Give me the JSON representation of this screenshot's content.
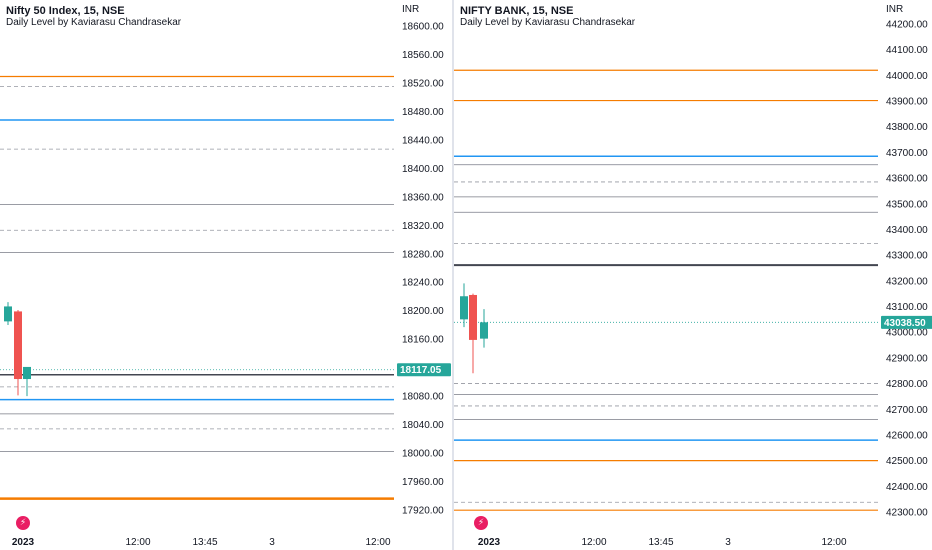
{
  "colors": {
    "up": "#26a69a",
    "down": "#ef5350",
    "orange": "#f57c00",
    "blue": "#2196f3",
    "gray": "#787b86",
    "dark": "#434651",
    "dashed": "#9598a1",
    "current": "#26a69a"
  },
  "charts": [
    {
      "title": "Nifty 50 Index, 15, NSE",
      "subtitle": "Daily Level by Kaviarasu Chandrasekar",
      "currency": "INR",
      "current_price": 18117.05,
      "current_label": "18117.05"
    },
    {
      "title": "NIFTY BANK, 15, NSE",
      "subtitle": "Daily Level by Kaviarasu Chandrasekar",
      "currency": "INR",
      "current_price": 43038.5,
      "current_label": "43038.50"
    }
  ],
  "chart_data": [
    {
      "type": "candlestick",
      "title": "Nifty 50 Index, 15, NSE",
      "subtitle": "Daily Level by Kaviarasu Chandrasekar",
      "currency": "INR",
      "ylim": [
        17905,
        18610
      ],
      "y_ticks": [
        "18600.00",
        "18560.00",
        "18520.00",
        "18480.00",
        "18440.00",
        "18400.00",
        "18360.00",
        "18320.00",
        "18280.00",
        "18240.00",
        "18200.00",
        "18160.00",
        "18120.00",
        "18080.00",
        "18040.00",
        "18000.00",
        "17960.00",
        "17920.00"
      ],
      "x_ticks": [
        "2023",
        "12:00",
        "13:45",
        "3",
        "12:00"
      ],
      "candles": [
        {
          "open": 18185,
          "high": 18212,
          "low": 18180,
          "close": 18206
        },
        {
          "open": 18199,
          "high": 18201,
          "low": 18081,
          "close": 18104
        },
        {
          "open": 18104,
          "high": 18119,
          "low": 18080,
          "close": 18121
        }
      ],
      "levels": [
        {
          "price": 18529,
          "style": "orange"
        },
        {
          "price": 18515,
          "style": "dashed"
        },
        {
          "price": 18468,
          "style": "blue"
        },
        {
          "price": 18427,
          "style": "dashed"
        },
        {
          "price": 18349,
          "style": "gray"
        },
        {
          "price": 18313,
          "style": "dashed"
        },
        {
          "price": 18282,
          "style": "gray"
        },
        {
          "price": 18110,
          "style": "dark"
        },
        {
          "price": 18093,
          "style": "dashed"
        },
        {
          "price": 18075,
          "style": "blue"
        },
        {
          "price": 18055,
          "style": "gray"
        },
        {
          "price": 18034,
          "style": "dashed"
        },
        {
          "price": 18002,
          "style": "gray"
        },
        {
          "price": 17936,
          "style": "orange-thick"
        }
      ],
      "current_price": 18117.05
    },
    {
      "type": "candlestick",
      "title": "NIFTY BANK, 15, NSE",
      "subtitle": "Daily Level by Kaviarasu Chandrasekar",
      "currency": "INR",
      "ylim": [
        42260,
        44225
      ],
      "y_ticks": [
        "44200.00",
        "44100.00",
        "44000.00",
        "43900.00",
        "43800.00",
        "43700.00",
        "43600.00",
        "43500.00",
        "43400.00",
        "43300.00",
        "43200.00",
        "43100.00",
        "43000.00",
        "42900.00",
        "42800.00",
        "42700.00",
        "42600.00",
        "42500.00",
        "42400.00",
        "42300.00"
      ],
      "x_ticks": [
        "2023",
        "12:00",
        "13:45",
        "3",
        "12:00"
      ],
      "candles": [
        {
          "open": 43050,
          "high": 43190,
          "low": 43020,
          "close": 43140
        },
        {
          "open": 43145,
          "high": 43150,
          "low": 42840,
          "close": 42970
        },
        {
          "open": 42975,
          "high": 43090,
          "low": 42940,
          "close": 43038.5
        }
      ],
      "levels": [
        {
          "price": 44020,
          "style": "orange"
        },
        {
          "price": 43902,
          "style": "orange"
        },
        {
          "price": 43685,
          "style": "blue"
        },
        {
          "price": 43652,
          "style": "gray"
        },
        {
          "price": 43585,
          "style": "dashed"
        },
        {
          "price": 43527,
          "style": "gray"
        },
        {
          "price": 43467,
          "style": "gray"
        },
        {
          "price": 43345,
          "style": "dashed"
        },
        {
          "price": 43261,
          "style": "dark-thick"
        },
        {
          "price": 42800,
          "style": "dashed"
        },
        {
          "price": 42757,
          "style": "gray"
        },
        {
          "price": 42713,
          "style": "dashed"
        },
        {
          "price": 42660,
          "style": "gray"
        },
        {
          "price": 42580,
          "style": "blue"
        },
        {
          "price": 42500,
          "style": "orange"
        },
        {
          "price": 42338,
          "style": "dashed"
        },
        {
          "price": 42307,
          "style": "orange"
        }
      ],
      "current_price": 43038.5
    }
  ]
}
